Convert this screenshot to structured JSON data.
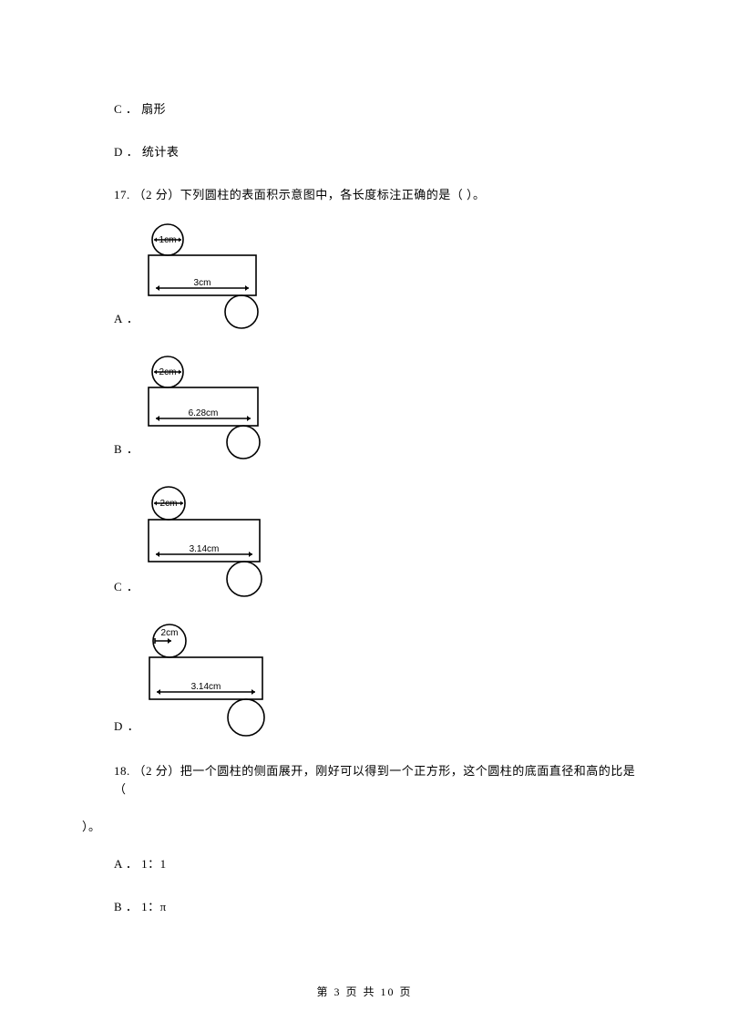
{
  "options_prev": {
    "c": "C ． 扇形",
    "d": "D ． 统计表"
  },
  "q17": {
    "text": "17.  （2 分）下列圆柱的表面积示意图中，各长度标注正确的是（     ）。",
    "diagrams": {
      "a": {
        "label": "A ．",
        "topCircleLabel": "1cm",
        "topLabelAlign": "center",
        "rectLabel": "3cm",
        "topCircleD": 34,
        "rectW": 118,
        "rectH": 44,
        "bottomCircleD": 36,
        "stroke": "#000000",
        "bg": "#ffffff",
        "fontSize": 10
      },
      "b": {
        "label": "B ．",
        "topCircleLabel": "2cm",
        "topLabelAlign": "center",
        "rectLabel": "6.28cm",
        "topCircleD": 34,
        "rectW": 120,
        "rectH": 42,
        "bottomCircleD": 36,
        "stroke": "#000000",
        "bg": "#ffffff",
        "fontSize": 10
      },
      "c": {
        "label": "C ．",
        "topCircleLabel": "2cm",
        "topLabelAlign": "center",
        "rectLabel": "3.14cm",
        "topCircleD": 36,
        "rectW": 122,
        "rectH": 46,
        "bottomCircleD": 38,
        "stroke": "#000000",
        "bg": "#ffffff",
        "fontSize": 10
      },
      "d": {
        "label": "D ．",
        "topCircleLabel": "2cm",
        "topLabelAlign": "left",
        "rectLabel": "3.14cm",
        "topCircleD": 36,
        "rectW": 124,
        "rectH": 46,
        "bottomCircleD": 40,
        "stroke": "#000000",
        "bg": "#ffffff",
        "fontSize": 10
      }
    }
  },
  "q18": {
    "text1": "18.   （2 分）把一个圆柱的侧面展开，刚好可以得到一个正方形，这个圆柱的底面直径和高的比是（",
    "text2": "）。",
    "a": "A ． 1：1",
    "b": "B ． 1：π"
  },
  "footer": "第 3 页 共 10 页"
}
